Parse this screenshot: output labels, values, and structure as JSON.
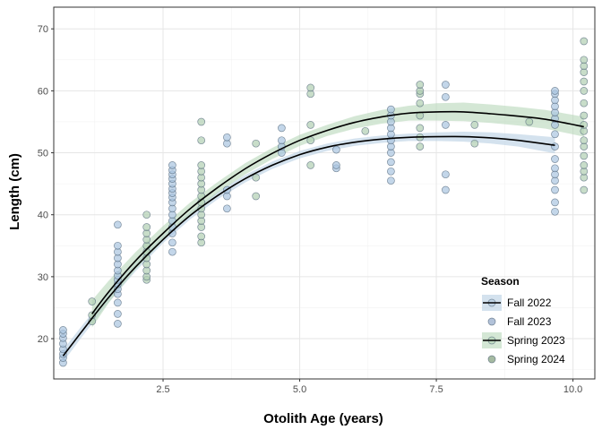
{
  "chart_data": {
    "type": "scatter",
    "xlabel": "Otolith Age (years)",
    "ylabel": "Length (cm)",
    "xlim": [
      0.5,
      10.4
    ],
    "ylim": [
      13.5,
      73.5
    ],
    "x_ticks": [
      2.5,
      5.0,
      7.5,
      10.0
    ],
    "x_tick_labels": [
      "2.5",
      "5.0",
      "7.5",
      "10.0"
    ],
    "y_ticks": [
      20,
      30,
      40,
      50,
      60,
      70
    ],
    "y_tick_labels": [
      "20",
      "30",
      "40",
      "50",
      "60",
      "70"
    ],
    "grid": true,
    "legend": {
      "title": "Season",
      "position": "bottom-right",
      "entries": [
        {
          "label": "Fall 2022",
          "kind": "fit",
          "band_color": "#b8cfe3"
        },
        {
          "label": "Fall 2023",
          "kind": "point",
          "color": "#9fb3cf"
        },
        {
          "label": "Spring 2023",
          "kind": "fit",
          "band_color": "#b7d7b9"
        },
        {
          "label": "Spring 2024",
          "kind": "point",
          "color": "#8fa98a"
        }
      ]
    },
    "series": [
      {
        "name": "Fall",
        "color": "#aac4e0",
        "points": [
          [
            0.67,
            16.1
          ],
          [
            0.67,
            16.9
          ],
          [
            0.67,
            17.5
          ],
          [
            0.67,
            18.3
          ],
          [
            0.67,
            19.2
          ],
          [
            0.67,
            20.1
          ],
          [
            0.67,
            20.8
          ],
          [
            0.67,
            21.4
          ],
          [
            1.67,
            22.4
          ],
          [
            1.67,
            24.0
          ],
          [
            1.67,
            25.8
          ],
          [
            1.67,
            27.2
          ],
          [
            1.67,
            28.0
          ],
          [
            1.67,
            28.8
          ],
          [
            1.67,
            29.5
          ],
          [
            1.67,
            30.2
          ],
          [
            1.67,
            31.0
          ],
          [
            1.67,
            32.0
          ],
          [
            1.67,
            33.0
          ],
          [
            1.67,
            34.0
          ],
          [
            1.67,
            35.0
          ],
          [
            1.67,
            38.4
          ],
          [
            2.67,
            34.0
          ],
          [
            2.67,
            35.5
          ],
          [
            2.67,
            37.0
          ],
          [
            2.67,
            38.0
          ],
          [
            2.67,
            39.0
          ],
          [
            2.67,
            40.0
          ],
          [
            2.67,
            41.0
          ],
          [
            2.67,
            42.0
          ],
          [
            2.67,
            42.8
          ],
          [
            2.67,
            43.5
          ],
          [
            2.67,
            44.2
          ],
          [
            2.67,
            45.0
          ],
          [
            2.67,
            45.8
          ],
          [
            2.67,
            46.5
          ],
          [
            2.67,
            47.2
          ],
          [
            2.67,
            48.0
          ],
          [
            3.67,
            41.0
          ],
          [
            3.67,
            43.0
          ],
          [
            3.67,
            44.0
          ],
          [
            3.67,
            51.5
          ],
          [
            3.67,
            52.5
          ],
          [
            4.67,
            50.0
          ],
          [
            4.67,
            51.0
          ],
          [
            4.67,
            52.0
          ],
          [
            4.67,
            54.0
          ],
          [
            5.67,
            47.5
          ],
          [
            5.67,
            48.0
          ],
          [
            5.67,
            50.5
          ],
          [
            6.67,
            45.5
          ],
          [
            6.67,
            47.0
          ],
          [
            6.67,
            48.5
          ],
          [
            6.67,
            50.0
          ],
          [
            6.67,
            51.0
          ],
          [
            6.67,
            52.0
          ],
          [
            6.67,
            53.0
          ],
          [
            6.67,
            54.0
          ],
          [
            6.67,
            55.0
          ],
          [
            6.67,
            56.0
          ],
          [
            6.67,
            57.0
          ],
          [
            7.67,
            44.0
          ],
          [
            7.67,
            46.5
          ],
          [
            7.67,
            54.5
          ],
          [
            7.67,
            59.0
          ],
          [
            7.67,
            61.0
          ],
          [
            9.67,
            40.5
          ],
          [
            9.67,
            42.0
          ],
          [
            9.67,
            44.0
          ],
          [
            9.67,
            45.5
          ],
          [
            9.67,
            46.5
          ],
          [
            9.67,
            47.5
          ],
          [
            9.67,
            49.0
          ],
          [
            9.67,
            51.0
          ],
          [
            9.67,
            53.0
          ],
          [
            9.67,
            54.5
          ],
          [
            9.67,
            55.5
          ],
          [
            9.67,
            56.5
          ],
          [
            9.67,
            57.5
          ],
          [
            9.67,
            58.5
          ],
          [
            9.67,
            59.5
          ],
          [
            9.67,
            60.0
          ]
        ]
      },
      {
        "name": "Spring",
        "color": "#b0ceb2",
        "points": [
          [
            1.2,
            22.8
          ],
          [
            1.2,
            23.8
          ],
          [
            1.2,
            26.0
          ],
          [
            2.2,
            29.5
          ],
          [
            2.2,
            30.0
          ],
          [
            2.2,
            31.0
          ],
          [
            2.2,
            32.0
          ],
          [
            2.2,
            33.0
          ],
          [
            2.2,
            34.0
          ],
          [
            2.2,
            35.0
          ],
          [
            2.2,
            36.0
          ],
          [
            2.2,
            37.0
          ],
          [
            2.2,
            38.0
          ],
          [
            2.2,
            40.0
          ],
          [
            3.2,
            35.5
          ],
          [
            3.2,
            36.5
          ],
          [
            3.2,
            38.0
          ],
          [
            3.2,
            39.0
          ],
          [
            3.2,
            40.0
          ],
          [
            3.2,
            41.0
          ],
          [
            3.2,
            42.0
          ],
          [
            3.2,
            43.0
          ],
          [
            3.2,
            44.0
          ],
          [
            3.2,
            45.0
          ],
          [
            3.2,
            46.0
          ],
          [
            3.2,
            47.0
          ],
          [
            3.2,
            48.0
          ],
          [
            3.2,
            52.0
          ],
          [
            3.2,
            55.0
          ],
          [
            4.2,
            43.0
          ],
          [
            4.2,
            46.0
          ],
          [
            4.2,
            51.5
          ],
          [
            5.2,
            48.0
          ],
          [
            5.2,
            52.0
          ],
          [
            5.2,
            54.5
          ],
          [
            5.2,
            59.5
          ],
          [
            5.2,
            60.5
          ],
          [
            6.2,
            53.5
          ],
          [
            7.2,
            51.0
          ],
          [
            7.2,
            52.5
          ],
          [
            7.2,
            54.0
          ],
          [
            7.2,
            56.0
          ],
          [
            7.2,
            58.0
          ],
          [
            7.2,
            59.5
          ],
          [
            7.2,
            60.0
          ],
          [
            7.2,
            61.0
          ],
          [
            8.2,
            51.5
          ],
          [
            8.2,
            54.5
          ],
          [
            9.2,
            55.0
          ],
          [
            10.2,
            44.0
          ],
          [
            10.2,
            46.0
          ],
          [
            10.2,
            47.0
          ],
          [
            10.2,
            48.0
          ],
          [
            10.2,
            49.5
          ],
          [
            10.2,
            51.0
          ],
          [
            10.2,
            52.0
          ],
          [
            10.2,
            53.5
          ],
          [
            10.2,
            54.5
          ],
          [
            10.2,
            56.0
          ],
          [
            10.2,
            58.0
          ],
          [
            10.2,
            60.0
          ],
          [
            10.2,
            61.5
          ],
          [
            10.2,
            63.0
          ],
          [
            10.2,
            64.0
          ],
          [
            10.2,
            65.0
          ],
          [
            10.2,
            68.0
          ]
        ]
      }
    ],
    "fits": [
      {
        "name": "Fall",
        "band_color": "#b8cfe3",
        "curve": [
          [
            0.67,
            17.2
          ],
          [
            1.0,
            21.0
          ],
          [
            1.5,
            26.6
          ],
          [
            2.0,
            31.6
          ],
          [
            2.5,
            36.0
          ],
          [
            3.0,
            39.9
          ],
          [
            3.5,
            43.1
          ],
          [
            4.0,
            45.8
          ],
          [
            4.5,
            48.0
          ],
          [
            5.0,
            49.7
          ],
          [
            5.5,
            50.9
          ],
          [
            6.0,
            51.7
          ],
          [
            6.5,
            52.2
          ],
          [
            7.0,
            52.5
          ],
          [
            7.5,
            52.6
          ],
          [
            8.0,
            52.6
          ],
          [
            8.5,
            52.4
          ],
          [
            9.0,
            52.0
          ],
          [
            9.67,
            51.2
          ]
        ],
        "band_halfwidth": [
          1.0,
          0.9,
          0.8,
          0.7,
          0.6,
          0.6,
          0.6,
          0.6,
          0.6,
          0.6,
          0.6,
          0.6,
          0.6,
          0.6,
          0.7,
          0.8,
          0.9,
          1.0,
          1.3
        ]
      },
      {
        "name": "Spring",
        "band_color": "#b7d7b9",
        "curve": [
          [
            1.2,
            24.0
          ],
          [
            1.5,
            27.5
          ],
          [
            2.0,
            32.6
          ],
          [
            2.5,
            37.0
          ],
          [
            3.0,
            41.0
          ],
          [
            3.5,
            44.4
          ],
          [
            4.0,
            47.4
          ],
          [
            4.5,
            49.9
          ],
          [
            5.0,
            52.0
          ],
          [
            5.5,
            53.6
          ],
          [
            6.0,
            54.9
          ],
          [
            6.5,
            55.8
          ],
          [
            7.0,
            56.4
          ],
          [
            7.5,
            56.6
          ],
          [
            8.0,
            56.6
          ],
          [
            8.5,
            56.3
          ],
          [
            9.0,
            55.9
          ],
          [
            9.5,
            55.4
          ],
          [
            10.2,
            54.2
          ]
        ],
        "band_halfwidth": [
          2.2,
          1.8,
          1.4,
          1.2,
          1.0,
          0.9,
          0.9,
          0.9,
          0.9,
          0.9,
          1.0,
          1.1,
          1.2,
          1.4,
          1.5,
          1.5,
          1.5,
          1.5,
          1.6
        ]
      }
    ]
  }
}
